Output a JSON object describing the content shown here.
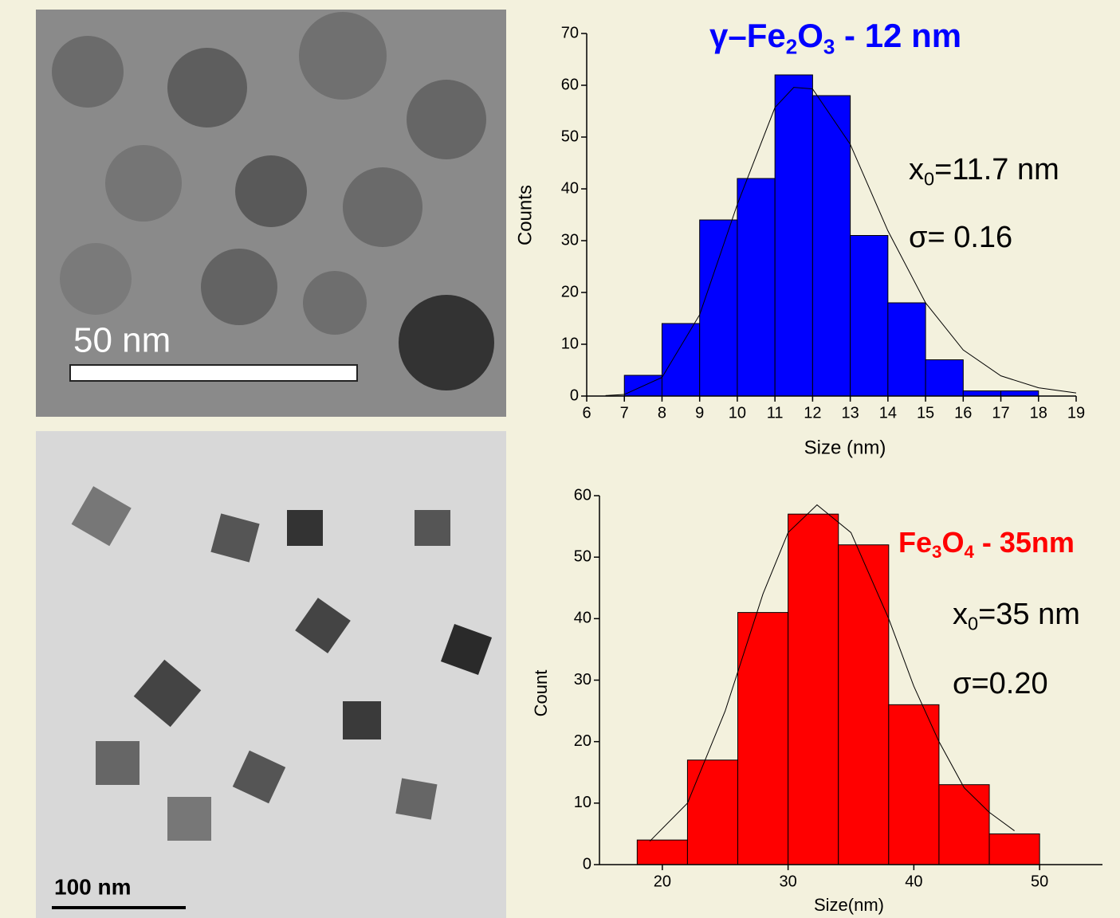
{
  "images": [
    {
      "scale_label": "50 nm"
    },
    {
      "scale_label": "100 nm"
    }
  ],
  "chart_data": [
    {
      "type": "histogram",
      "title": [
        "γ–Fe",
        "2",
        "O",
        "3",
        " - 12 nm"
      ],
      "color": "#0000ff",
      "title_color": "#0000ff",
      "bins": [
        7,
        8,
        9,
        10,
        11,
        12,
        13,
        14,
        15,
        16,
        17,
        18
      ],
      "values": [
        4,
        14,
        34,
        42,
        62,
        58,
        31,
        18,
        7,
        1,
        1
      ],
      "fit": {
        "x": [
          6.5,
          7,
          8,
          9,
          10,
          11,
          11.5,
          12,
          13,
          14,
          15,
          16,
          17,
          18,
          19
        ],
        "values": [
          0.1,
          0.3,
          3.6,
          15.7,
          37,
          55.7,
          59.6,
          59.3,
          48.6,
          31.9,
          18,
          8.9,
          3.9,
          1.6,
          0.6
        ]
      },
      "annotations": [
        [
          "x",
          "0",
          "=11.7 nm"
        ],
        [
          "σ= 0.16"
        ]
      ],
      "x_label": "Size (nm)",
      "y_label": "Counts",
      "xlim": [
        6,
        19
      ],
      "xticks": [
        6,
        7,
        8,
        9,
        10,
        11,
        12,
        13,
        14,
        15,
        16,
        17,
        18,
        19
      ],
      "ylim": [
        0,
        70
      ],
      "yticks": [
        0,
        10,
        20,
        30,
        40,
        50,
        60,
        70
      ]
    },
    {
      "type": "histogram",
      "title": [
        "Fe",
        "3",
        "O",
        "4",
        " - 35nm"
      ],
      "color": "#ff0000",
      "title_color": "#ff0000",
      "bins": [
        18,
        22,
        26,
        30,
        34,
        38,
        42,
        46,
        50
      ],
      "values": [
        4,
        17,
        41,
        57,
        52,
        26,
        13,
        5
      ],
      "fit": {
        "x": [
          19,
          22,
          25,
          28,
          30,
          32.3,
          35,
          38,
          40,
          42,
          44,
          46,
          48
        ],
        "values": [
          3.8,
          10,
          25,
          44,
          54,
          58.5,
          54,
          40,
          29,
          20,
          12.5,
          8.5,
          5.5
        ]
      },
      "annotations": [
        [
          "x",
          "0",
          "=35 nm"
        ],
        [
          "σ=0.20"
        ]
      ],
      "x_label": "Size(nm)",
      "y_label": "Count",
      "xlim": [
        15,
        55
      ],
      "xticks": [
        20,
        30,
        40,
        50
      ],
      "ylim": [
        0,
        60
      ],
      "yticks": [
        0,
        10,
        20,
        30,
        40,
        50,
        60
      ]
    }
  ]
}
